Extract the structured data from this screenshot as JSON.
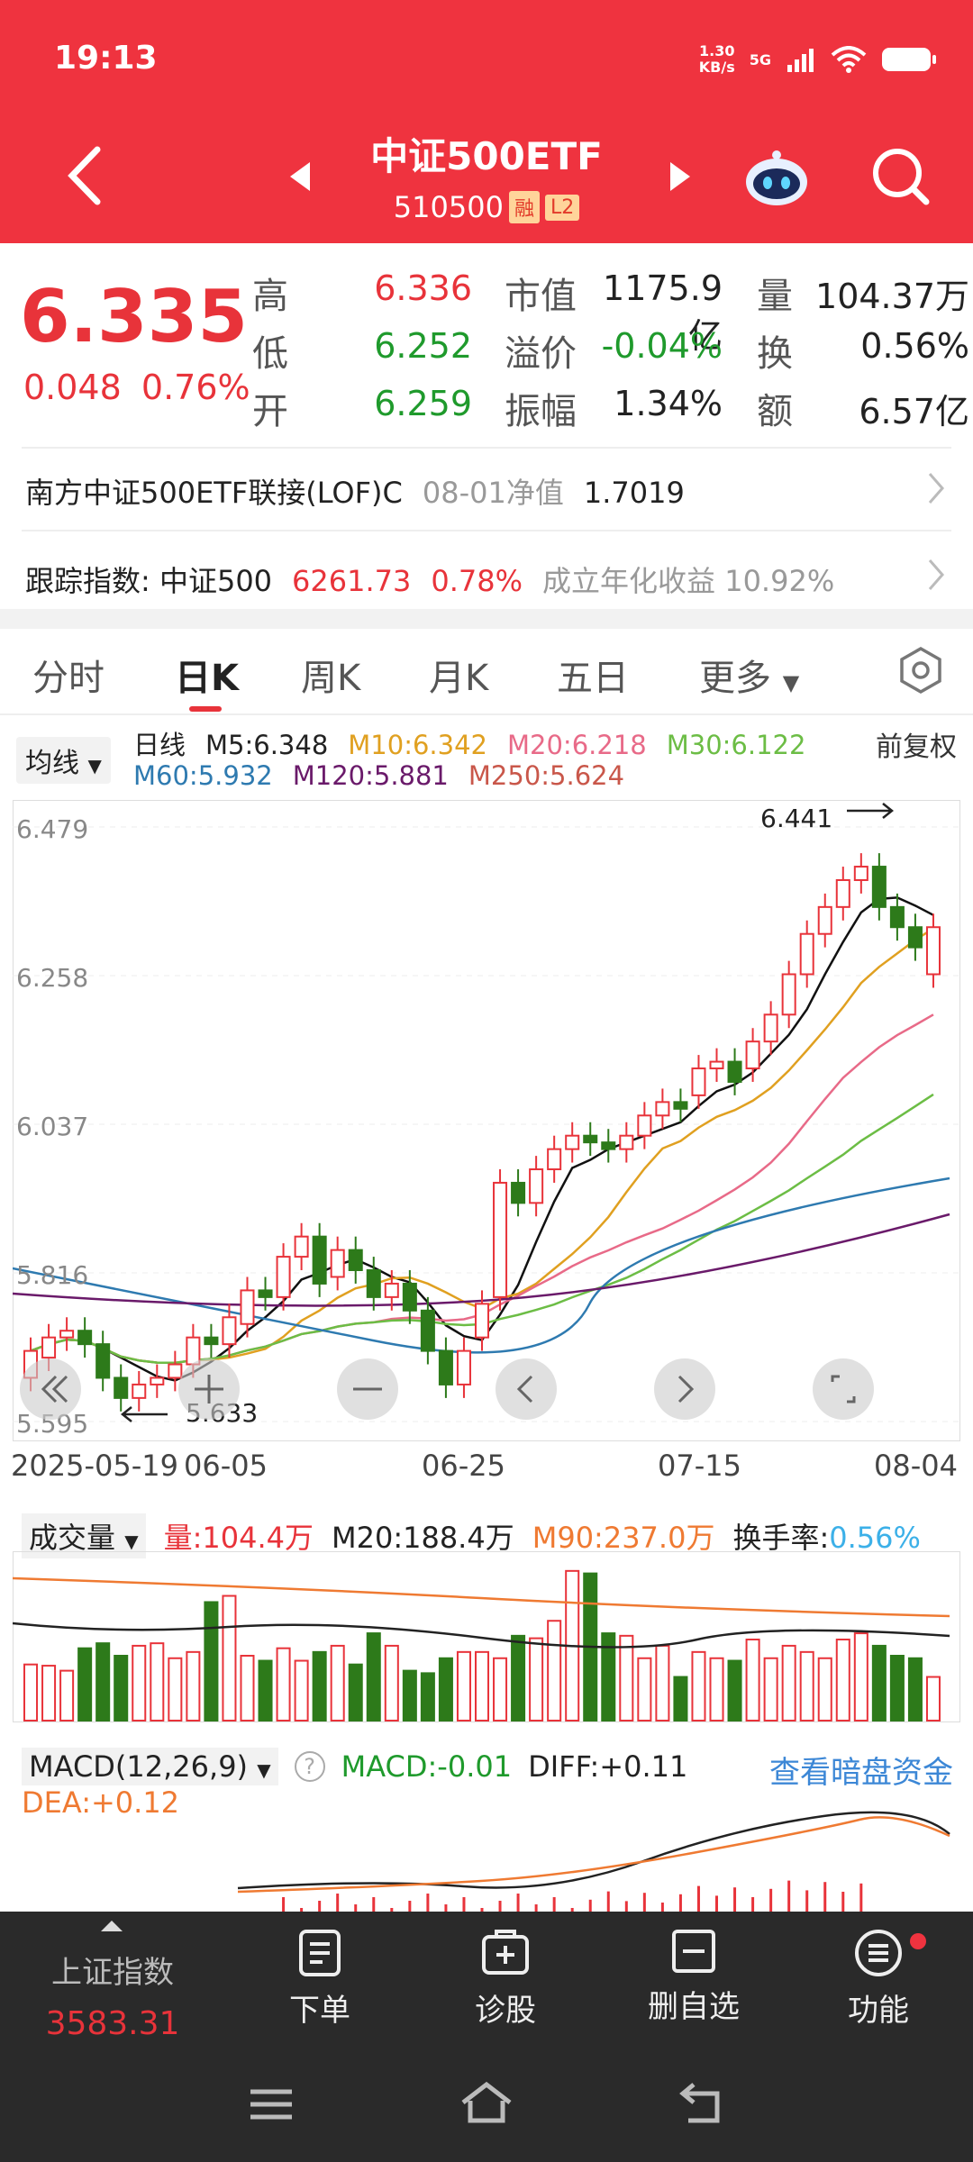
{
  "status": {
    "time": "19:13",
    "netspeed": "1.30\nKB/s",
    "net": "5G"
  },
  "header": {
    "name": "中证500ETF",
    "code": "510500",
    "tag1": "融",
    "tag2": "L2"
  },
  "quote": {
    "price": "6.335",
    "change": "0.048",
    "pct": "0.76%",
    "labels": [
      "高",
      "低",
      "开"
    ],
    "values": [
      "6.336",
      "6.252",
      "6.259"
    ],
    "labels2": [
      "市值",
      "溢价",
      "振幅"
    ],
    "values2": [
      "1175.9亿",
      "-0.04%",
      "1.34%"
    ],
    "labels3": [
      "量",
      "换",
      "额"
    ],
    "values3": [
      "104.37万",
      "0.56%",
      "6.57亿"
    ]
  },
  "fund": {
    "name": "南方中证500ETF联接(LOF)C",
    "date": "08-01净值",
    "nav": "1.7019"
  },
  "index": {
    "label": "跟踪指数: 中证500",
    "value": "6261.73",
    "pct": "0.78%",
    "ret": "成立年化收益 10.92%"
  },
  "tabs": [
    "分时",
    "日K",
    "周K",
    "月K",
    "五日",
    "更多"
  ],
  "ma": {
    "sel": "均线",
    "l1": [
      "日线",
      "M5:6.348",
      "M10:6.342",
      "M20:6.218",
      "M30:6.122"
    ],
    "l2": [
      "M60:5.932",
      "M120:5.881",
      "M250:5.624"
    ],
    "adj": "前复权"
  },
  "chart_data": {
    "type": "candlestick",
    "ylabels": [
      "6.479",
      "6.258",
      "6.037",
      "5.816",
      "5.595"
    ],
    "dates": [
      "2025-05-19",
      "06-05",
      "06-25",
      "07-15",
      "08-04"
    ],
    "hi": "6.441",
    "lo": "5.633",
    "closes": [
      5.7,
      5.72,
      5.73,
      5.71,
      5.66,
      5.63,
      5.65,
      5.66,
      5.68,
      5.72,
      5.71,
      5.75,
      5.79,
      5.78,
      5.84,
      5.87,
      5.8,
      5.85,
      5.82,
      5.78,
      5.8,
      5.76,
      5.7,
      5.65,
      5.7,
      5.77,
      5.95,
      5.92,
      5.97,
      6.0,
      6.02,
      6.01,
      6.0,
      6.02,
      6.05,
      6.07,
      6.06,
      6.12,
      6.13,
      6.1,
      6.16,
      6.2,
      6.26,
      6.32,
      6.36,
      6.4,
      6.42,
      6.36,
      6.33,
      6.3,
      6.33
    ],
    "opens": [
      5.66,
      5.69,
      5.72,
      5.73,
      5.71,
      5.66,
      5.63,
      5.65,
      5.66,
      5.68,
      5.72,
      5.71,
      5.74,
      5.79,
      5.78,
      5.84,
      5.87,
      5.81,
      5.85,
      5.82,
      5.78,
      5.8,
      5.76,
      5.7,
      5.65,
      5.72,
      5.78,
      5.95,
      5.92,
      5.97,
      6.0,
      6.02,
      6.01,
      6.0,
      6.02,
      6.05,
      6.07,
      6.08,
      6.12,
      6.13,
      6.12,
      6.16,
      6.2,
      6.26,
      6.32,
      6.36,
      6.4,
      6.42,
      6.36,
      6.33,
      6.26
    ]
  },
  "volume": {
    "sel": "成交量",
    "l": "量:104.4万",
    "m20": "M20:188.4万",
    "m90": "M90:237.0万",
    "tr": "换手率:",
    "trv": "0.56%",
    "vals": [
      45,
      44,
      40,
      58,
      62,
      52,
      60,
      62,
      50,
      55,
      95,
      100,
      52,
      48,
      58,
      48,
      55,
      60,
      45,
      70,
      60,
      40,
      38,
      50,
      55,
      55,
      50,
      68,
      66,
      80,
      120,
      118,
      70,
      68,
      50,
      60,
      35,
      55,
      50,
      48,
      65,
      50,
      60,
      55,
      50,
      65,
      70,
      60,
      52,
      50,
      35
    ]
  },
  "macd": {
    "sel": "MACD(12,26,9)",
    "macd": "MACD:-0.01",
    "diff": "DIFF:+0.11",
    "dea": "DEA:+0.12",
    "link": "查看暗盘资金"
  },
  "nav": {
    "idx": "上证指数",
    "idxval": "3583.31",
    "items": [
      "下单",
      "诊股",
      "删自选",
      "功能"
    ]
  }
}
